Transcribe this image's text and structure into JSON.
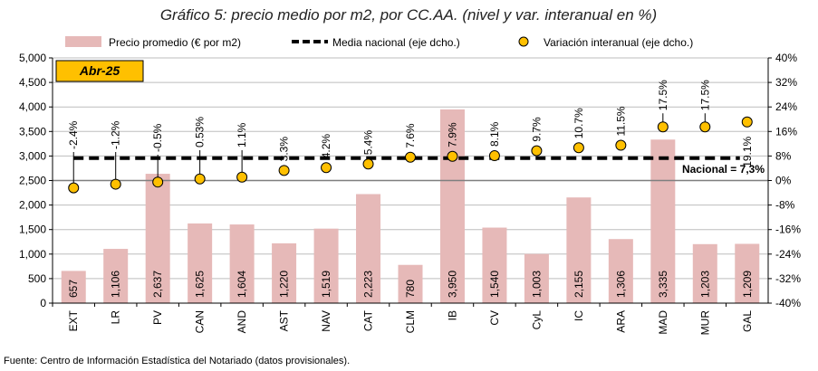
{
  "chart_data": {
    "type": "bar",
    "title": "Gráfico 5: precio medio por m2, por CC.AA. (nivel y var. interanual en %)",
    "period_badge": "Abr-25",
    "categories": [
      "EXT",
      "LR",
      "PV",
      "CAN",
      "AND",
      "AST",
      "NAV",
      "CAT",
      "CLM",
      "IB",
      "CV",
      "CyL",
      "IC",
      "ARA",
      "MAD",
      "MUR",
      "GAL"
    ],
    "series": [
      {
        "name": "Precio promedio (€ por m2)",
        "type": "bar",
        "axis": "left",
        "color": "#E6B9B8",
        "values": [
          657,
          1106,
          2637,
          1625,
          1604,
          1220,
          1519,
          2223,
          780,
          3950,
          1540,
          1003,
          2155,
          1306,
          3335,
          1203,
          1209
        ],
        "labels": [
          "657",
          "1,106",
          "2,637",
          "1,625",
          "1,604",
          "1,220",
          "1,519",
          "2,223",
          "780",
          "3,950",
          "1,540",
          "1,003",
          "2,155",
          "1,306",
          "3,335",
          "1,203",
          "1,209"
        ]
      },
      {
        "name": "Media nacional (eje dcho.)",
        "type": "line",
        "axis": "right",
        "color": "#000000",
        "value": 7.3,
        "label": "Nacional = 7,3%"
      },
      {
        "name": "Variación interanual (eje dcho.)",
        "type": "scatter",
        "axis": "right",
        "color": "#FFC000",
        "values": [
          -2.4,
          -1.2,
          -0.5,
          0.53,
          1.1,
          3.3,
          4.2,
          5.4,
          7.6,
          7.9,
          8.1,
          9.7,
          10.7,
          11.5,
          17.5,
          17.5,
          19.1
        ],
        "labels": [
          "-2.4%",
          "-1.2%",
          "-0.5%",
          "0.53%",
          "1.1%",
          "3.3%",
          "4.2%",
          "5.4%",
          "7.6%",
          "7.9%",
          "8.1%",
          "9.7%",
          "10.7%",
          "11.5%",
          "17.5%",
          "17.5%",
          "19.1%"
        ]
      }
    ],
    "ylim": [
      0,
      5000
    ],
    "yticks": [
      "0",
      "500",
      "1,000",
      "1,500",
      "2,000",
      "2,500",
      "3,000",
      "3,500",
      "4,000",
      "4,500",
      "5,000"
    ],
    "y2lim": [
      -40,
      40
    ],
    "y2ticks": [
      "-40%",
      "-32%",
      "-24%",
      "-16%",
      "-8%",
      "0%",
      "8%",
      "16%",
      "24%",
      "32%",
      "40%"
    ],
    "grid": true,
    "legend": "top",
    "source": "Fuente: Centro de Información Estadística del Notariado (datos provisionales)."
  }
}
